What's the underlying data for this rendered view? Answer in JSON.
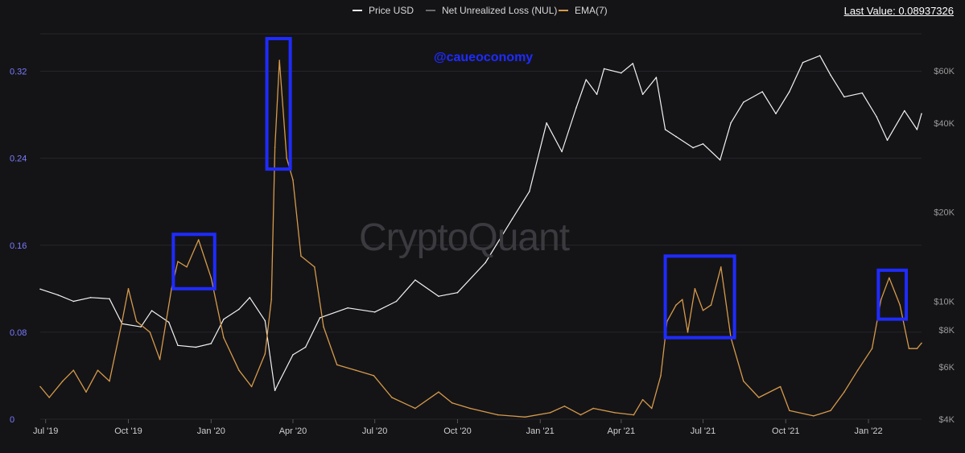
{
  "legend": {
    "price": "Price USD",
    "nul": "Net Unrealized Loss (NUL)",
    "ema": "EMA(7)"
  },
  "last_value": "Last Value: 0.08937326",
  "handle": "@caueoconomy",
  "brand": "CryptoQuant",
  "colors": {
    "background": "#141417",
    "price": "#f2f2f2",
    "nul": "#6a6a72",
    "ema": "#d69a4a",
    "highlight": "#1f2bff",
    "left_axis": "#7b7bff",
    "right_axis": "#9a9a9a"
  },
  "chart_data": {
    "type": "line",
    "x_ticks": [
      "Jul '19",
      "Oct '19",
      "Jan '20",
      "Apr '20",
      "Jul '20",
      "Oct '20",
      "Jan '21",
      "Apr '21",
      "Jul '21",
      "Oct '21",
      "Jan '22"
    ],
    "left_axis": {
      "ticks": [
        "0",
        "0.08",
        "0.16",
        "0.24",
        "0.32"
      ],
      "ylim": [
        0,
        0.33
      ]
    },
    "right_axis": {
      "scale": "log",
      "ticks": [
        "$4K",
        "$6K",
        "$8K",
        "$10K",
        "$20K",
        "$40K",
        "$60K"
      ]
    },
    "x_range": [
      "2019-06-25",
      "2022-03-01"
    ],
    "grid": true,
    "legend_position": "top-center",
    "series": [
      {
        "name": "Price USD",
        "axis": "right",
        "unit": "USD",
        "points": [
          [
            "2019-06-25",
            11000
          ],
          [
            "2019-07-15",
            10500
          ],
          [
            "2019-08-01",
            10000
          ],
          [
            "2019-08-20",
            10300
          ],
          [
            "2019-09-10",
            10200
          ],
          [
            "2019-09-24",
            8400
          ],
          [
            "2019-10-15",
            8200
          ],
          [
            "2019-10-27",
            9300
          ],
          [
            "2019-11-15",
            8500
          ],
          [
            "2019-11-25",
            7100
          ],
          [
            "2019-12-15",
            7000
          ],
          [
            "2020-01-01",
            7200
          ],
          [
            "2020-01-15",
            8700
          ],
          [
            "2020-02-01",
            9400
          ],
          [
            "2020-02-13",
            10300
          ],
          [
            "2020-03-01",
            8600
          ],
          [
            "2020-03-12",
            5000
          ],
          [
            "2020-03-16",
            5300
          ],
          [
            "2020-04-01",
            6600
          ],
          [
            "2020-04-15",
            7000
          ],
          [
            "2020-05-01",
            8800
          ],
          [
            "2020-06-01",
            9500
          ],
          [
            "2020-07-01",
            9200
          ],
          [
            "2020-07-25",
            10000
          ],
          [
            "2020-08-15",
            11800
          ],
          [
            "2020-09-10",
            10400
          ],
          [
            "2020-10-01",
            10700
          ],
          [
            "2020-11-01",
            13500
          ],
          [
            "2020-12-01",
            19000
          ],
          [
            "2020-12-20",
            23500
          ],
          [
            "2021-01-08",
            40000
          ],
          [
            "2021-01-25",
            32000
          ],
          [
            "2021-02-10",
            45000
          ],
          [
            "2021-02-21",
            56000
          ],
          [
            "2021-03-05",
            50000
          ],
          [
            "2021-03-13",
            61000
          ],
          [
            "2021-04-01",
            59000
          ],
          [
            "2021-04-14",
            63500
          ],
          [
            "2021-04-25",
            50000
          ],
          [
            "2021-05-10",
            57000
          ],
          [
            "2021-05-20",
            38000
          ],
          [
            "2021-06-01",
            36000
          ],
          [
            "2021-06-20",
            33000
          ],
          [
            "2021-07-01",
            34000
          ],
          [
            "2021-07-20",
            30000
          ],
          [
            "2021-08-01",
            40000
          ],
          [
            "2021-08-15",
            47000
          ],
          [
            "2021-09-05",
            51000
          ],
          [
            "2021-09-20",
            43000
          ],
          [
            "2021-10-05",
            51000
          ],
          [
            "2021-10-20",
            64000
          ],
          [
            "2021-11-08",
            67500
          ],
          [
            "2021-11-20",
            58000
          ],
          [
            "2021-12-05",
            49000
          ],
          [
            "2021-12-25",
            50500
          ],
          [
            "2022-01-10",
            42000
          ],
          [
            "2022-01-22",
            35000
          ],
          [
            "2022-02-10",
            44000
          ],
          [
            "2022-02-24",
            38000
          ],
          [
            "2022-03-01",
            43000
          ]
        ]
      },
      {
        "name": "EMA(7)",
        "axis": "left",
        "unit": "NUL",
        "points": [
          [
            "2019-06-25",
            0.03
          ],
          [
            "2019-07-05",
            0.02
          ],
          [
            "2019-07-20",
            0.035
          ],
          [
            "2019-08-01",
            0.045
          ],
          [
            "2019-08-15",
            0.025
          ],
          [
            "2019-08-28",
            0.045
          ],
          [
            "2019-09-10",
            0.035
          ],
          [
            "2019-09-24",
            0.09
          ],
          [
            "2019-10-01",
            0.12
          ],
          [
            "2019-10-10",
            0.09
          ],
          [
            "2019-10-25",
            0.08
          ],
          [
            "2019-11-05",
            0.055
          ],
          [
            "2019-11-18",
            0.12
          ],
          [
            "2019-11-25",
            0.145
          ],
          [
            "2019-12-05",
            0.14
          ],
          [
            "2019-12-18",
            0.165
          ],
          [
            "2020-01-01",
            0.13
          ],
          [
            "2020-01-15",
            0.075
          ],
          [
            "2020-02-01",
            0.045
          ],
          [
            "2020-02-15",
            0.03
          ],
          [
            "2020-03-01",
            0.06
          ],
          [
            "2020-03-08",
            0.11
          ],
          [
            "2020-03-12",
            0.25
          ],
          [
            "2020-03-17",
            0.33
          ],
          [
            "2020-03-25",
            0.24
          ],
          [
            "2020-04-01",
            0.22
          ],
          [
            "2020-04-10",
            0.15
          ],
          [
            "2020-04-25",
            0.14
          ],
          [
            "2020-05-05",
            0.085
          ],
          [
            "2020-05-20",
            0.05
          ],
          [
            "2020-06-10",
            0.045
          ],
          [
            "2020-06-30",
            0.04
          ],
          [
            "2020-07-20",
            0.02
          ],
          [
            "2020-08-15",
            0.01
          ],
          [
            "2020-09-10",
            0.025
          ],
          [
            "2020-09-25",
            0.015
          ],
          [
            "2020-10-15",
            0.01
          ],
          [
            "2020-11-15",
            0.004
          ],
          [
            "2020-12-15",
            0.002
          ],
          [
            "2021-01-12",
            0.006
          ],
          [
            "2021-01-28",
            0.012
          ],
          [
            "2021-02-15",
            0.004
          ],
          [
            "2021-03-01",
            0.01
          ],
          [
            "2021-03-25",
            0.006
          ],
          [
            "2021-04-15",
            0.004
          ],
          [
            "2021-04-25",
            0.018
          ],
          [
            "2021-05-05",
            0.01
          ],
          [
            "2021-05-15",
            0.04
          ],
          [
            "2021-05-22",
            0.09
          ],
          [
            "2021-06-01",
            0.105
          ],
          [
            "2021-06-08",
            0.11
          ],
          [
            "2021-06-14",
            0.08
          ],
          [
            "2021-06-22",
            0.12
          ],
          [
            "2021-07-01",
            0.1
          ],
          [
            "2021-07-10",
            0.105
          ],
          [
            "2021-07-21",
            0.14
          ],
          [
            "2021-08-01",
            0.075
          ],
          [
            "2021-08-15",
            0.035
          ],
          [
            "2021-09-01",
            0.02
          ],
          [
            "2021-09-25",
            0.03
          ],
          [
            "2021-10-05",
            0.008
          ],
          [
            "2021-11-01",
            0.003
          ],
          [
            "2021-11-20",
            0.008
          ],
          [
            "2021-12-05",
            0.025
          ],
          [
            "2021-12-20",
            0.045
          ],
          [
            "2022-01-05",
            0.065
          ],
          [
            "2022-01-15",
            0.11
          ],
          [
            "2022-01-24",
            0.13
          ],
          [
            "2022-02-05",
            0.105
          ],
          [
            "2022-02-15",
            0.065
          ],
          [
            "2022-02-24",
            0.065
          ],
          [
            "2022-03-01",
            0.07
          ]
        ]
      }
    ],
    "highlights": [
      {
        "from": "2019-11-20",
        "to": "2020-01-05",
        "ylim": [
          0.12,
          0.17
        ]
      },
      {
        "from": "2020-03-03",
        "to": "2020-03-29",
        "ylim": [
          0.23,
          0.35
        ]
      },
      {
        "from": "2021-05-20",
        "to": "2021-08-05",
        "ylim": [
          0.075,
          0.15
        ]
      },
      {
        "from": "2022-01-12",
        "to": "2022-02-12",
        "ylim": [
          0.092,
          0.137
        ]
      }
    ]
  }
}
